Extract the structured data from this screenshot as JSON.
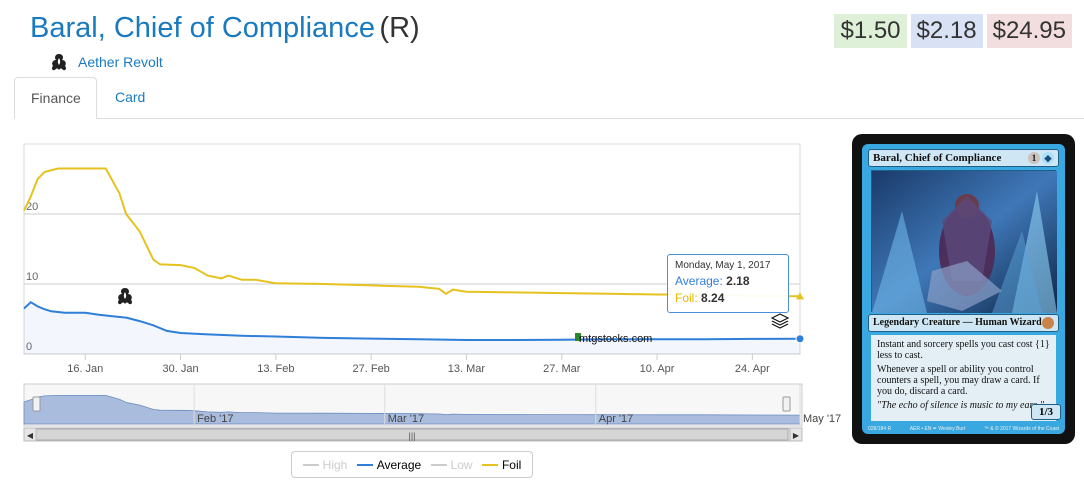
{
  "header": {
    "card_name": "Baral, Chief of Compliance",
    "rarity": "(R)",
    "set_name": "Aether Revolt"
  },
  "prices": {
    "low": "$1.50",
    "mid": "$2.18",
    "high": "$24.95"
  },
  "tabs": [
    {
      "label": "Finance",
      "active": true
    },
    {
      "label": "Card",
      "active": false
    }
  ],
  "chart_data": {
    "type": "line",
    "x_ticks": [
      "16. Jan",
      "30. Jan",
      "13. Feb",
      "27. Feb",
      "13. Mar",
      "27. Mar",
      "10. Apr",
      "24. Apr"
    ],
    "y_ticks": [
      "0",
      "10",
      "20"
    ],
    "ylim": [
      0,
      30
    ],
    "xlim": [
      "2017-01-07",
      "2017-05-01"
    ],
    "grid": true,
    "series": [
      {
        "name": "Average",
        "color": "#2f7ed8",
        "values": [
          [
            "2017-01-07",
            6.5
          ],
          [
            "2017-01-08",
            7.4
          ],
          [
            "2017-01-09",
            6.8
          ],
          [
            "2017-01-10",
            6.4
          ],
          [
            "2017-01-11",
            6.1
          ],
          [
            "2017-01-13",
            5.9
          ],
          [
            "2017-01-16",
            5.9
          ],
          [
            "2017-01-18",
            5.6
          ],
          [
            "2017-01-20",
            5.4
          ],
          [
            "2017-01-22",
            5.2
          ],
          [
            "2017-01-24",
            4.7
          ],
          [
            "2017-01-26",
            4.1
          ],
          [
            "2017-01-28",
            3.3
          ],
          [
            "2017-01-30",
            3.0
          ],
          [
            "2017-02-03",
            2.8
          ],
          [
            "2017-02-08",
            2.6
          ],
          [
            "2017-02-13",
            2.5
          ],
          [
            "2017-02-20",
            2.3
          ],
          [
            "2017-02-27",
            2.2
          ],
          [
            "2017-03-06",
            2.1
          ],
          [
            "2017-03-13",
            2.0
          ],
          [
            "2017-03-20",
            2.0
          ],
          [
            "2017-03-27",
            2.05
          ],
          [
            "2017-04-03",
            2.1
          ],
          [
            "2017-04-10",
            2.1
          ],
          [
            "2017-04-17",
            2.12
          ],
          [
            "2017-04-24",
            2.15
          ],
          [
            "2017-05-01",
            2.18
          ]
        ]
      },
      {
        "name": "Foil",
        "color": "#e5c21f",
        "values": [
          [
            "2017-01-07",
            20.5
          ],
          [
            "2017-01-08",
            22.5
          ],
          [
            "2017-01-09",
            25.0
          ],
          [
            "2017-01-10",
            26.0
          ],
          [
            "2017-01-12",
            26.5
          ],
          [
            "2017-01-16",
            26.5
          ],
          [
            "2017-01-19",
            26.5
          ],
          [
            "2017-01-21",
            23.0
          ],
          [
            "2017-01-22",
            20.0
          ],
          [
            "2017-01-24",
            17.5
          ],
          [
            "2017-01-26",
            13.5
          ],
          [
            "2017-01-27",
            12.8
          ],
          [
            "2017-01-30",
            12.7
          ],
          [
            "2017-02-01",
            12.3
          ],
          [
            "2017-02-03",
            11.2
          ],
          [
            "2017-02-05",
            10.8
          ],
          [
            "2017-02-06",
            11.2
          ],
          [
            "2017-02-08",
            10.6
          ],
          [
            "2017-02-10",
            10.6
          ],
          [
            "2017-02-13",
            10.1
          ],
          [
            "2017-02-20",
            10.0
          ],
          [
            "2017-02-27",
            9.8
          ],
          [
            "2017-03-06",
            9.6
          ],
          [
            "2017-03-09",
            9.3
          ],
          [
            "2017-03-10",
            8.6
          ],
          [
            "2017-03-11",
            9.2
          ],
          [
            "2017-03-13",
            8.9
          ],
          [
            "2017-03-20",
            8.8
          ],
          [
            "2017-03-27",
            8.7
          ],
          [
            "2017-04-03",
            8.6
          ],
          [
            "2017-04-10",
            8.5
          ],
          [
            "2017-04-17",
            8.5
          ],
          [
            "2017-04-24",
            8.3
          ],
          [
            "2017-05-01",
            8.24
          ]
        ]
      },
      {
        "name": "High",
        "hidden": true,
        "values": []
      },
      {
        "name": "Low",
        "hidden": true,
        "values": []
      }
    ],
    "navigator_ticks": [
      "Feb '17",
      "Mar '17",
      "Apr '17",
      "May '17"
    ],
    "tooltip": {
      "date": "Monday, May 1, 2017",
      "average_label": "Average:",
      "average_value": "2.18",
      "foil_label": "Foil:",
      "foil_value": "8.24"
    },
    "watermark": "mtgstocks.com"
  },
  "legend": [
    {
      "name": "High",
      "color": "#cccccc",
      "hidden": true
    },
    {
      "name": "Average",
      "color": "#2f7ed8",
      "hidden": false
    },
    {
      "name": "Low",
      "color": "#cccccc",
      "hidden": true
    },
    {
      "name": "Foil",
      "color": "#e5c21f",
      "hidden": false
    }
  ],
  "card_image": {
    "name": "Baral, Chief of Compliance",
    "mana_generic": "1",
    "type_line": "Legendary Creature — Human Wizard",
    "rules_1": "Instant and sorcery spells you cast cost {1} less to cast.",
    "rules_2": "Whenever a spell or ability you control counters a spell, you may draw a card. If you do, discard a card.",
    "flavor": "\"The echo of silence is music to my ears.\"",
    "pt": "1/3",
    "footer_left": "028/184 R",
    "footer_mid": "AER • EN ✒ Wesley Burt",
    "footer_right": "™ & © 2017 Wizards of the Coast"
  }
}
